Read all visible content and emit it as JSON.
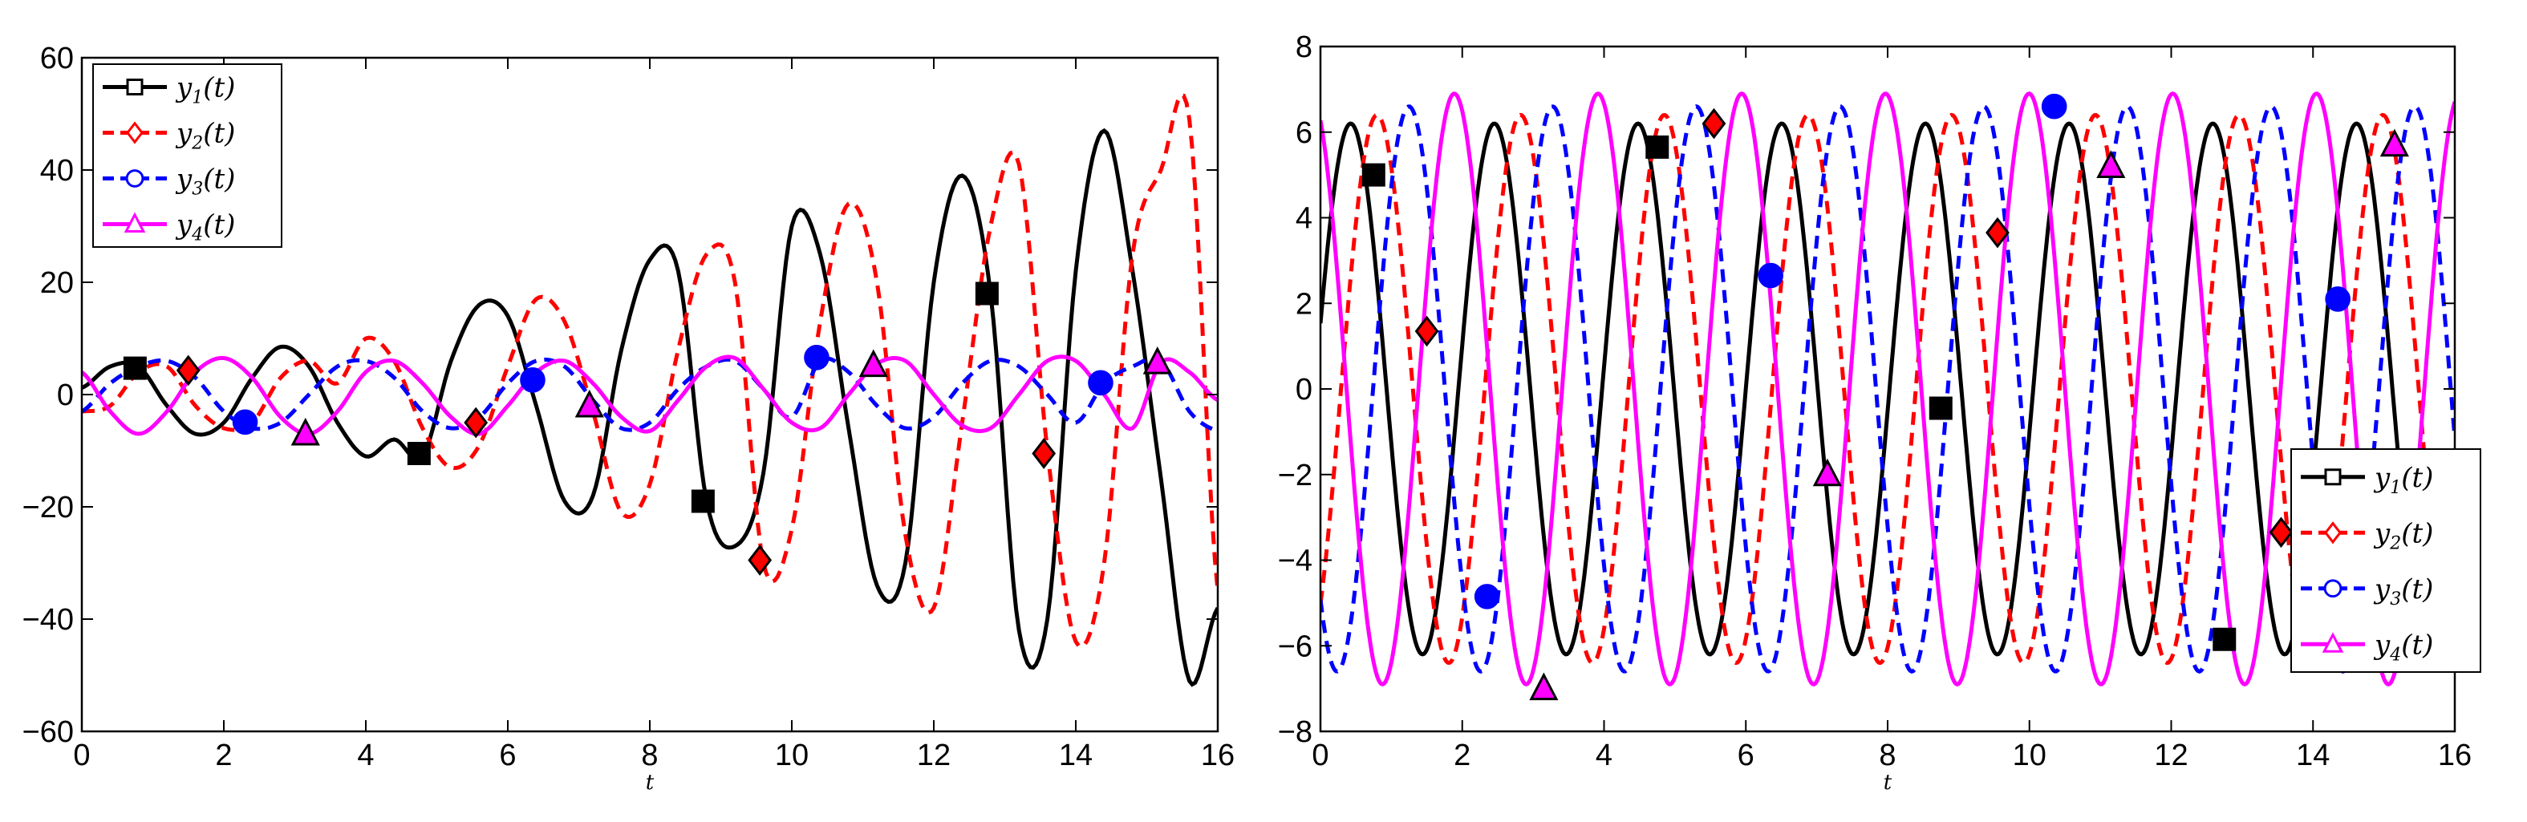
{
  "chart_data": [
    {
      "type": "line",
      "title": "",
      "xlabel": "t",
      "ylabel": "",
      "xlim": [
        0,
        16
      ],
      "ylim": [
        -60,
        60
      ],
      "xticks": [
        "0",
        "2",
        "4",
        "6",
        "8",
        "10",
        "12",
        "14",
        "16"
      ],
      "yticks": [
        "60",
        "40",
        "20",
        "0",
        "−20",
        "−40",
        "−60"
      ],
      "legend_position": "top-left",
      "series": [
        {
          "name": "y",
          "sub": "1",
          "label_suffix": "(t)",
          "color": "#000000",
          "dash": "solid",
          "marker": "square",
          "fill": "#000000",
          "x": [
            0,
            0.4,
            0.8,
            1.2,
            1.6,
            2,
            2.4,
            2.8,
            3.2,
            3.6,
            4,
            4.4,
            4.8,
            5.2,
            5.6,
            6,
            6.4,
            6.8,
            7.2,
            7.6,
            8,
            8.4,
            8.8,
            9.2,
            9.6,
            10,
            10.4,
            10.8,
            11.2,
            11.6,
            12,
            12.4,
            12.8,
            13.2,
            13.6,
            14,
            14.4,
            14.8,
            15.2,
            15.6,
            16
          ],
          "y": [
            1.2,
            5,
            5,
            -2,
            -7,
            -5,
            3,
            8.5,
            5,
            -5,
            -11,
            -8,
            -11,
            6,
            16,
            14,
            -2,
            -19,
            -18,
            8,
            24,
            22,
            -19,
            -27,
            -14,
            30,
            25,
            -6,
            -34,
            -30,
            20,
            39,
            18,
            -42,
            -40,
            22,
            47,
            22,
            -15,
            -51,
            -38
          ],
          "markers": [
            [
              0.75,
              4.7
            ],
            [
              4.75,
              -10.5
            ],
            [
              8.75,
              -19
            ],
            [
              12.75,
              18
            ]
          ]
        },
        {
          "name": "y",
          "sub": "2",
          "label_suffix": "(t)",
          "color": "#ff0000",
          "dash": "dashed",
          "marker": "diamond",
          "fill": "#ff0000",
          "x": [
            0,
            0.4,
            0.8,
            1.2,
            1.6,
            2,
            2.4,
            2.8,
            3.2,
            3.6,
            4,
            4.4,
            4.8,
            5.2,
            5.6,
            6,
            6.4,
            6.8,
            7.2,
            7.6,
            8,
            8.4,
            8.8,
            9.2,
            9.6,
            10,
            10.4,
            10.8,
            11.2,
            11.6,
            12,
            12.4,
            12.8,
            13.2,
            13.6,
            14,
            14.4,
            14.8,
            15.2,
            15.6,
            16
          ],
          "y": [
            -3,
            -2,
            4,
            5,
            -2,
            -6,
            -5,
            3,
            6,
            2,
            10,
            6,
            -6,
            -13,
            -9,
            5,
            17,
            13,
            -3,
            -21,
            -16,
            8,
            25,
            20,
            -30,
            -24,
            13,
            34,
            20,
            -25,
            -38,
            -5,
            30,
            41,
            -10,
            -44,
            -30,
            25,
            40,
            49,
            -35
          ],
          "markers": [
            [
              1.5,
              4.3
            ],
            [
              5.55,
              -5
            ],
            [
              9.55,
              -29.5
            ],
            [
              13.55,
              -10.5
            ]
          ]
        },
        {
          "name": "y",
          "sub": "3",
          "label_suffix": "(t)",
          "color": "#0000ff",
          "dash": "dashed",
          "marker": "circle",
          "fill": "#0000ff",
          "x": [
            0,
            0.4,
            0.8,
            1.2,
            1.6,
            2,
            2.4,
            2.8,
            3.2,
            3.6,
            4,
            4.4,
            4.8,
            5.2,
            5.6,
            6,
            6.4,
            6.8,
            7.2,
            7.6,
            8,
            8.4,
            8.8,
            9.2,
            9.6,
            10,
            10.4,
            10.8,
            11.2,
            11.6,
            12,
            12.4,
            12.8,
            13.2,
            13.6,
            14,
            14.4,
            14.8,
            15.2,
            15.6,
            16
          ],
          "y": [
            -3,
            2,
            5,
            6,
            3,
            -3,
            -6,
            -5,
            0,
            5,
            6,
            3,
            -3,
            -6,
            -4,
            2,
            6,
            5,
            -1,
            -6,
            -5,
            1,
            5,
            6,
            1,
            -4,
            6,
            4,
            -2,
            -6,
            -4,
            2,
            6,
            5,
            0,
            -5,
            2,
            5,
            6,
            -3,
            -6.5
          ],
          "markers": [
            [
              2.3,
              -4.9
            ],
            [
              6.35,
              2.6
            ],
            [
              10.35,
              6.6
            ],
            [
              14.35,
              2.1
            ]
          ]
        },
        {
          "name": "y",
          "sub": "4",
          "label_suffix": "(t)",
          "color": "#ff00ff",
          "dash": "solid",
          "marker": "triangle",
          "fill": "#ff00ff",
          "x": [
            0,
            0.4,
            0.8,
            1.2,
            1.6,
            2,
            2.4,
            2.8,
            3.2,
            3.6,
            4,
            4.4,
            4.8,
            5.2,
            5.6,
            6,
            6.4,
            6.8,
            7.2,
            7.6,
            8,
            8.4,
            8.8,
            9.2,
            9.6,
            10,
            10.4,
            10.8,
            11.2,
            11.6,
            12,
            12.4,
            12.8,
            13.2,
            13.6,
            14,
            14.4,
            14.8,
            15.2,
            15.6,
            16
          ],
          "y": [
            4,
            -3,
            -7,
            -3,
            4,
            6.5,
            3,
            -4,
            -7,
            -3,
            4,
            6,
            2,
            -4,
            -7,
            -2,
            4,
            6,
            2,
            -4,
            -6.5,
            -1,
            5,
            6.5,
            1,
            -5,
            -6,
            0,
            5.5,
            6,
            0,
            -5.5,
            -6,
            0,
            6,
            6,
            0,
            -6,
            5.7,
            4,
            -1
          ],
          "markers": [
            [
              3.15,
              -7
            ],
            [
              7.15,
              -2
            ],
            [
              11.15,
              5.2
            ],
            [
              15.15,
              5.7
            ]
          ]
        }
      ]
    },
    {
      "type": "line",
      "title": "",
      "xlabel": "t",
      "ylabel": "",
      "xlim": [
        0,
        16
      ],
      "ylim": [
        -8,
        8
      ],
      "xticks": [
        "0",
        "2",
        "4",
        "6",
        "8",
        "10",
        "12",
        "14",
        "16"
      ],
      "yticks": [
        "8",
        "6",
        "4",
        "2",
        "0",
        "−2",
        "−4",
        "−6",
        "−8"
      ],
      "legend_position": "bottom-right",
      "series": [
        {
          "name": "y",
          "sub": "1",
          "label_suffix": "(t)",
          "color": "#000000",
          "dash": "solid",
          "marker": "square",
          "fill": "#000000",
          "amp": 6.2,
          "omega": 3.1,
          "phase": 0.25,
          "markers": [
            [
              0.75,
              5
            ],
            [
              4.75,
              5.65
            ],
            [
              8.75,
              -0.45
            ],
            [
              12.75,
              -5.85
            ]
          ]
        },
        {
          "name": "y",
          "sub": "2",
          "label_suffix": "(t)",
          "color": "#ff0000",
          "dash": "dashed",
          "marker": "diamond",
          "fill": "#ff0000",
          "amp": 6.4,
          "omega": 3.1,
          "phase": -0.9,
          "markers": [
            [
              1.5,
              1.35
            ],
            [
              5.55,
              6.2
            ],
            [
              9.55,
              3.65
            ],
            [
              13.55,
              -3.35
            ]
          ]
        },
        {
          "name": "y",
          "sub": "3",
          "label_suffix": "(t)",
          "color": "#0000ff",
          "dash": "dashed",
          "marker": "circle",
          "fill": "#0000ff",
          "amp": 6.6,
          "omega": 3.1,
          "phase": -2.3,
          "markers": [
            [
              2.35,
              -4.85
            ],
            [
              6.35,
              2.65
            ],
            [
              10.35,
              6.6
            ],
            [
              14.35,
              2.1
            ]
          ]
        },
        {
          "name": "y",
          "sub": "4",
          "label_suffix": "(t)",
          "color": "#ff00ff",
          "dash": "solid",
          "marker": "triangle",
          "fill": "#ff00ff",
          "amp": 6.9,
          "omega": 3.1,
          "phase": 2.0,
          "markers": [
            [
              3.15,
              -7
            ],
            [
              7.15,
              -2
            ],
            [
              11.15,
              5.2
            ],
            [
              15.15,
              5.7
            ]
          ]
        }
      ]
    }
  ]
}
